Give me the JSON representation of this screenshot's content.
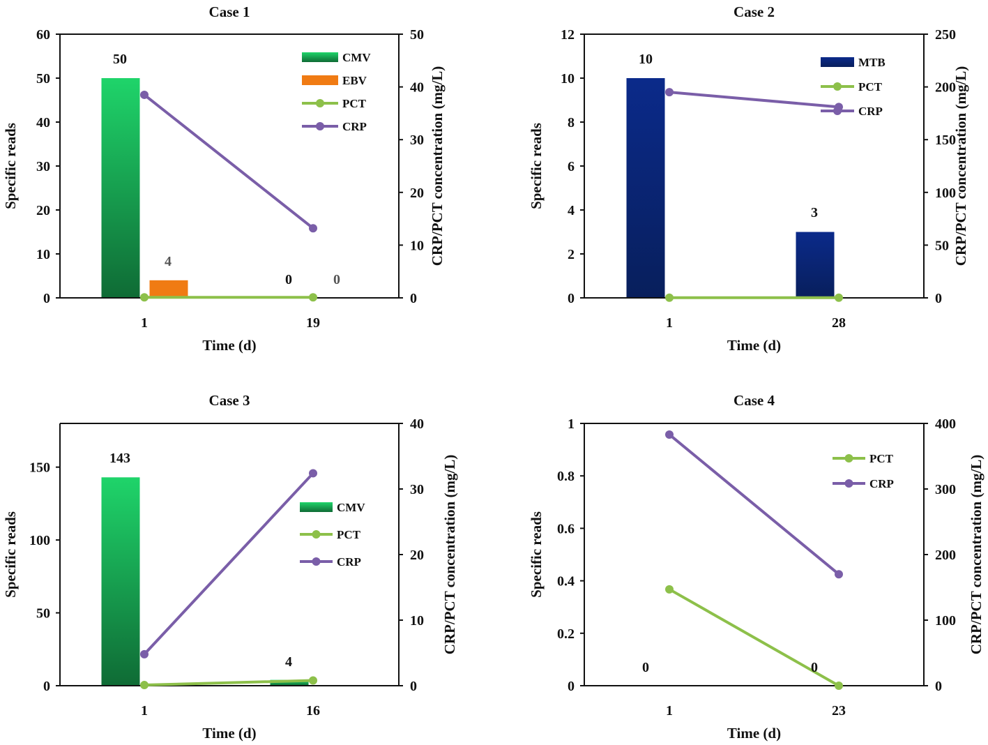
{
  "chart_data": [
    {
      "type": "bar+line",
      "title": "Case 1",
      "xlabel": "Time (d)",
      "ylabel": "Specific reads",
      "y2label": "CRP/PCT concentration  (mg/L)",
      "categories": [
        "1",
        "19"
      ],
      "ylim": [
        0,
        60
      ],
      "yticks": [
        0,
        10,
        20,
        30,
        40,
        50,
        60
      ],
      "y2lim": [
        0,
        50
      ],
      "y2ticks": [
        0,
        10,
        20,
        30,
        40,
        50
      ],
      "legend_position": "top-right",
      "bar_series": [
        {
          "name": "CMV",
          "values": [
            50,
            0
          ],
          "labels": [
            "50",
            "0"
          ],
          "color": "#1fd46a",
          "color_dark": "#0f6b35"
        },
        {
          "name": "EBV",
          "values": [
            4,
            0
          ],
          "labels": [
            "4",
            "0"
          ],
          "color": "#f07b13",
          "color_dark": "#f07b13"
        }
      ],
      "line_series": [
        {
          "name": "PCT",
          "values": [
            0.1,
            0.1
          ],
          "color": "#8dc04a"
        },
        {
          "name": "CRP",
          "values": [
            38.5,
            13.2
          ],
          "color": "#7a5ea8"
        }
      ]
    },
    {
      "type": "bar+line",
      "title": "Case 2",
      "xlabel": "Time (d)",
      "ylabel": "Specific reads",
      "y2label": "CRP/PCT concentration  (mg/L)",
      "categories": [
        "1",
        "28"
      ],
      "ylim": [
        0,
        12
      ],
      "yticks": [
        0,
        2,
        4,
        6,
        8,
        10,
        12
      ],
      "y2lim": [
        0,
        250
      ],
      "y2ticks": [
        0,
        50,
        100,
        150,
        200,
        250
      ],
      "legend_position": "top-right",
      "bar_series": [
        {
          "name": "MTB",
          "values": [
            10,
            3
          ],
          "labels": [
            "10",
            "3"
          ],
          "color": "#0b2a8a",
          "color_dark": "#081f5c"
        }
      ],
      "line_series": [
        {
          "name": "PCT",
          "values": [
            0.2,
            0.2
          ],
          "color": "#8dc04a"
        },
        {
          "name": "CRP",
          "values": [
            195,
            181
          ],
          "color": "#7a5ea8"
        }
      ]
    },
    {
      "type": "bar+line",
      "title": "Case 3",
      "xlabel": "Time (d)",
      "ylabel": "Specific reads",
      "y2label": "CRP/PCT concentration  (mg/L)",
      "categories": [
        "1",
        "16"
      ],
      "ylim": [
        0,
        180
      ],
      "yticks": [
        0,
        50,
        100,
        150
      ],
      "y2lim": [
        0,
        40
      ],
      "y2ticks": [
        0,
        10,
        20,
        30,
        40
      ],
      "legend_position": "middle-right",
      "bar_series": [
        {
          "name": "CMV",
          "values": [
            143,
            4
          ],
          "labels": [
            "143",
            "4"
          ],
          "color": "#1fd46a",
          "color_dark": "#0f6b35"
        }
      ],
      "line_series": [
        {
          "name": "PCT",
          "values": [
            0.1,
            0.8
          ],
          "color": "#8dc04a"
        },
        {
          "name": "CRP",
          "values": [
            4.8,
            32.4
          ],
          "color": "#7a5ea8"
        }
      ]
    },
    {
      "type": "line",
      "title": "Case 4",
      "xlabel": "Time (d)",
      "ylabel": "Specific reads",
      "y2label": "CRP/PCT concentration  (mg/L)",
      "categories": [
        "1",
        "23"
      ],
      "ylim": [
        0,
        1
      ],
      "yticks": [
        "0",
        "0.2",
        "0.4",
        "0.6",
        "0.8",
        "1"
      ],
      "y2lim": [
        0,
        400
      ],
      "y2ticks": [
        0,
        100,
        200,
        300,
        400
      ],
      "legend_position": "top-right",
      "bar_series": [
        {
          "name": "",
          "values": [
            0,
            0
          ],
          "labels": [
            "0",
            "0"
          ],
          "color": "#1fd46a",
          "color_dark": "#0f6b35"
        }
      ],
      "line_series": [
        {
          "name": "PCT",
          "values": [
            147,
            0
          ],
          "color": "#8dc04a"
        },
        {
          "name": "CRP",
          "values": [
            383,
            170
          ],
          "color": "#7a5ea8"
        }
      ]
    }
  ]
}
